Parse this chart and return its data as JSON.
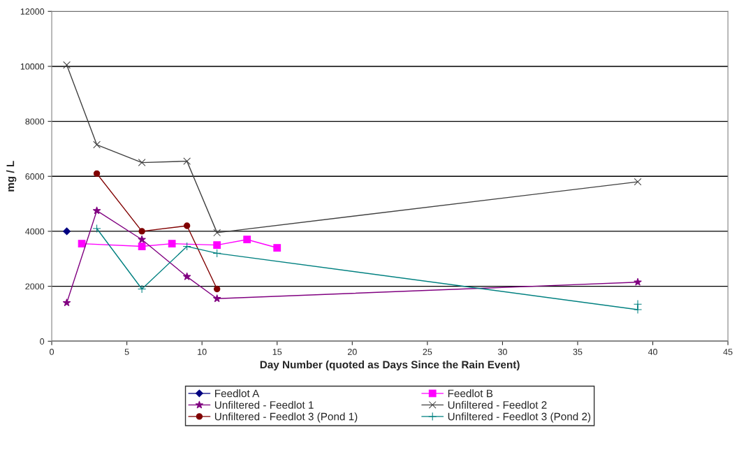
{
  "chart_data": {
    "type": "line",
    "xlabel": "Day Number (quoted as Days Since the Rain Event)",
    "ylabel": "mg / L",
    "xlim": [
      0,
      45
    ],
    "xticks": [
      0,
      5,
      10,
      15,
      20,
      25,
      30,
      35,
      40,
      45
    ],
    "ylim": [
      0,
      12000
    ],
    "yticks": [
      0,
      2000,
      4000,
      6000,
      8000,
      10000,
      12000
    ],
    "grid": "y",
    "legend": "bottom",
    "series": [
      {
        "name": "Feedlot A",
        "color": "#000080",
        "marker": "diamond",
        "x": [
          1
        ],
        "values": [
          4000
        ]
      },
      {
        "name": "Feedlot B",
        "color": "#ff00ff",
        "marker": "square",
        "x": [
          2,
          6,
          8,
          11,
          13,
          15
        ],
        "values": [
          3550,
          3450,
          3550,
          3500,
          3700,
          3400
        ]
      },
      {
        "name": "Unfiltered - Feedlot 1",
        "color": "#800080",
        "marker": "star",
        "x": [
          1,
          3,
          6,
          9,
          11,
          39
        ],
        "values": [
          1400,
          4750,
          3700,
          2350,
          1550,
          2150
        ]
      },
      {
        "name": "Unfiltered - Feedlot 2",
        "color": "#404040",
        "marker": "cross",
        "x": [
          1,
          3,
          6,
          9,
          11,
          39
        ],
        "values": [
          10050,
          7150,
          6500,
          6550,
          3950,
          5800
        ]
      },
      {
        "name": "Unfiltered - Feedlot 3 (Pond 1)",
        "color": "#800000",
        "marker": "circle",
        "x": [
          3,
          6,
          9,
          11
        ],
        "values": [
          6100,
          4000,
          4200,
          1900
        ]
      },
      {
        "name": "Unfiltered - Feedlot 3 (Pond 2)",
        "color": "#008080",
        "marker": "plus",
        "x": [
          3,
          6,
          9,
          11,
          39,
          39
        ],
        "values": [
          4100,
          1900,
          3450,
          3200,
          1150,
          1350
        ]
      }
    ]
  }
}
